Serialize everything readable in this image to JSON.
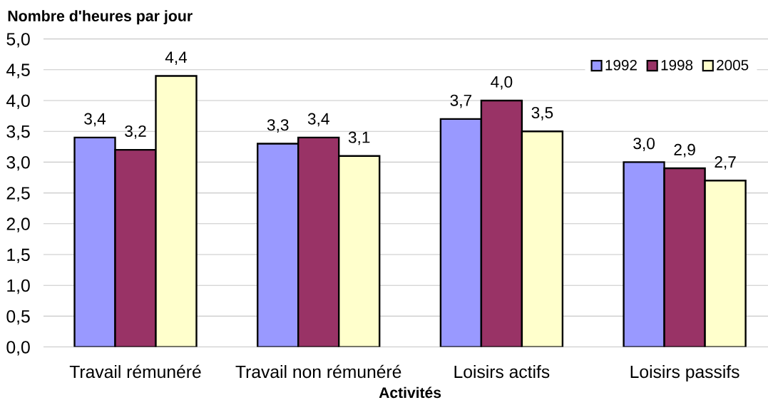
{
  "chart_data": {
    "type": "bar",
    "ylabel": "Nombre d'heures par jour",
    "xlabel": "Activités",
    "categories": [
      "Travail rémunéré",
      "Travail non rémunéré",
      "Loisirs actifs",
      "Loisirs passifs"
    ],
    "series": [
      {
        "name": "1992",
        "color": "#9999ff",
        "values": [
          3.4,
          3.3,
          3.7,
          3.0
        ],
        "value_labels": [
          "3,4",
          "3,3",
          "3,7",
          "3,0"
        ]
      },
      {
        "name": "1998",
        "color": "#993366",
        "values": [
          3.2,
          3.4,
          4.0,
          2.9
        ],
        "value_labels": [
          "3,2",
          "3,4",
          "4,0",
          "2,9"
        ]
      },
      {
        "name": "2005",
        "color": "#ffffcc",
        "values": [
          4.4,
          3.1,
          3.5,
          2.7
        ],
        "value_labels": [
          "4,4",
          "3,1",
          "3,5",
          "2,7"
        ]
      }
    ],
    "ylim": [
      0,
      5
    ],
    "yticks": [
      {
        "value": 0,
        "label": "0,0"
      },
      {
        "value": 0.5,
        "label": "0,5"
      },
      {
        "value": 1,
        "label": "1,0"
      },
      {
        "value": 1.5,
        "label": "1,5"
      },
      {
        "value": 2,
        "label": "2,0"
      },
      {
        "value": 2.5,
        "label": "2,5"
      },
      {
        "value": 3,
        "label": "3,0"
      },
      {
        "value": 3.5,
        "label": "3,5"
      },
      {
        "value": 4,
        "label": "4,0"
      },
      {
        "value": 4.5,
        "label": "4,5"
      },
      {
        "value": 5,
        "label": "5,0"
      }
    ],
    "grid": "y",
    "legend": "top right"
  }
}
